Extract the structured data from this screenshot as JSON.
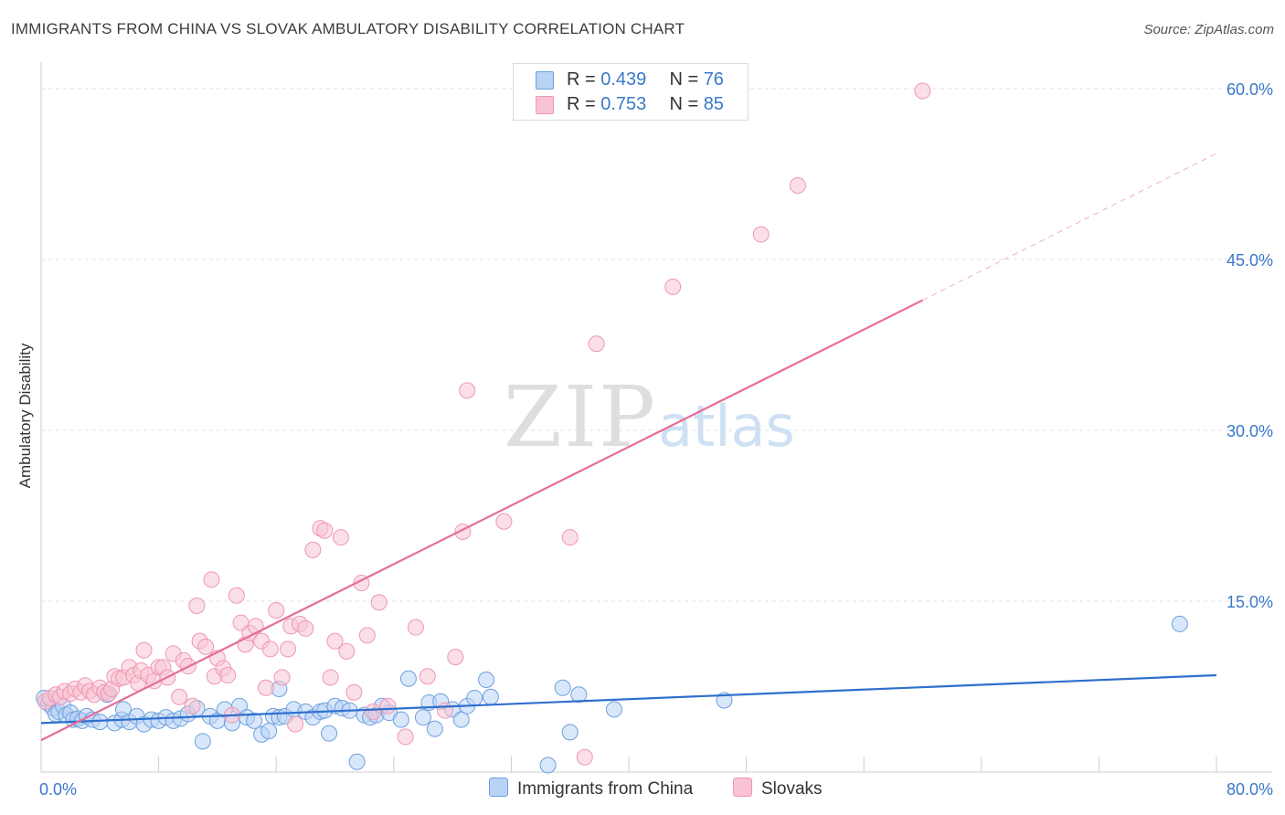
{
  "title": "IMMIGRANTS FROM CHINA VS SLOVAK AMBULATORY DISABILITY CORRELATION CHART",
  "source": "Source: ZipAtlas.com",
  "watermark": {
    "zip": "ZIP",
    "atlas": "atlas"
  },
  "legend_top": {
    "rows": [
      {
        "r_label": "R =",
        "r_value": "0.439",
        "n_label": "N =",
        "n_value": "76"
      },
      {
        "r_label": "R =",
        "r_value": "0.753",
        "n_label": "N =",
        "n_value": "85"
      }
    ]
  },
  "colors": {
    "china_fill": "#b9d3f5",
    "china_stroke": "#6fa0dd",
    "china_line": "#2f6fcc",
    "slovak_fill": "#f8c4d4",
    "slovak_stroke": "#ef97b2",
    "slovak_line": "#e56e97",
    "grid": "#e1e1e1",
    "axis_text": "#3a78c9"
  },
  "chart_data": {
    "type": "scatter",
    "title": "IMMIGRANTS FROM CHINA VS SLOVAK AMBULATORY DISABILITY CORRELATION CHART",
    "xlabel": "",
    "ylabel": "Ambulatory Disability",
    "xlim": [
      0,
      80
    ],
    "ylim": [
      0,
      62
    ],
    "x_tick_labels": [
      "0.0%",
      "80.0%"
    ],
    "y_ticks": [
      15,
      30,
      45,
      60
    ],
    "y_tick_labels": [
      "15.0%",
      "30.0%",
      "45.0%",
      "60.0%"
    ],
    "series": [
      {
        "name": "Immigrants from China",
        "r": 0.439,
        "n": 76,
        "trend": {
          "x0": 0,
          "y0": 4.3,
          "x1": 80,
          "y1": 8.5,
          "dashed_from": null
        },
        "points": [
          [
            0.2,
            6.5
          ],
          [
            0.5,
            6.0
          ],
          [
            0.8,
            5.6
          ],
          [
            1.0,
            5.1
          ],
          [
            1.2,
            5.3
          ],
          [
            1.5,
            5.8
          ],
          [
            1.7,
            5.0
          ],
          [
            2.0,
            5.2
          ],
          [
            2.2,
            4.6
          ],
          [
            2.5,
            4.7
          ],
          [
            2.8,
            4.5
          ],
          [
            3.1,
            4.9
          ],
          [
            3.5,
            4.6
          ],
          [
            4.0,
            4.4
          ],
          [
            4.5,
            6.8
          ],
          [
            5.0,
            4.3
          ],
          [
            5.5,
            4.6
          ],
          [
            5.6,
            5.5
          ],
          [
            6.0,
            4.4
          ],
          [
            6.5,
            4.9
          ],
          [
            7.0,
            4.2
          ],
          [
            7.5,
            4.6
          ],
          [
            8.0,
            4.5
          ],
          [
            8.5,
            4.8
          ],
          [
            9.0,
            4.5
          ],
          [
            9.5,
            4.7
          ],
          [
            10.0,
            5.1
          ],
          [
            10.6,
            5.6
          ],
          [
            11.0,
            2.7
          ],
          [
            11.5,
            4.9
          ],
          [
            12.0,
            4.5
          ],
          [
            12.5,
            5.5
          ],
          [
            13.0,
            4.3
          ],
          [
            13.5,
            5.8
          ],
          [
            14.0,
            4.8
          ],
          [
            14.5,
            4.5
          ],
          [
            15.0,
            3.3
          ],
          [
            15.5,
            3.6
          ],
          [
            15.8,
            4.9
          ],
          [
            16.2,
            4.8
          ],
          [
            16.2,
            7.3
          ],
          [
            16.6,
            4.9
          ],
          [
            17.2,
            5.5
          ],
          [
            18.0,
            5.3
          ],
          [
            18.5,
            4.8
          ],
          [
            19.0,
            5.3
          ],
          [
            19.3,
            5.4
          ],
          [
            19.6,
            3.4
          ],
          [
            20.0,
            5.8
          ],
          [
            20.5,
            5.6
          ],
          [
            21.0,
            5.4
          ],
          [
            21.5,
            0.9
          ],
          [
            22.0,
            5.0
          ],
          [
            22.4,
            4.8
          ],
          [
            22.8,
            5.0
          ],
          [
            23.2,
            5.8
          ],
          [
            23.7,
            5.2
          ],
          [
            24.5,
            4.6
          ],
          [
            25.0,
            8.2
          ],
          [
            26.0,
            4.8
          ],
          [
            26.4,
            6.1
          ],
          [
            26.8,
            3.8
          ],
          [
            27.2,
            6.2
          ],
          [
            28.0,
            5.5
          ],
          [
            28.6,
            4.6
          ],
          [
            29.0,
            5.8
          ],
          [
            29.5,
            6.5
          ],
          [
            30.3,
            8.1
          ],
          [
            30.6,
            6.6
          ],
          [
            34.5,
            0.6
          ],
          [
            35.5,
            7.4
          ],
          [
            36.0,
            3.5
          ],
          [
            36.6,
            6.8
          ],
          [
            39.0,
            5.5
          ],
          [
            46.5,
            6.3
          ],
          [
            77.5,
            13.0
          ]
        ]
      },
      {
        "name": "Slovaks",
        "r": 0.753,
        "n": 85,
        "trend": {
          "x0": 0,
          "y0": 2.8,
          "x1": 80,
          "y1": 54.3,
          "dashed_from": 60
        },
        "points": [
          [
            0.3,
            6.2
          ],
          [
            0.6,
            6.5
          ],
          [
            1.0,
            6.8
          ],
          [
            1.3,
            6.6
          ],
          [
            1.6,
            7.1
          ],
          [
            2.0,
            6.9
          ],
          [
            2.3,
            7.3
          ],
          [
            2.7,
            7.0
          ],
          [
            3.0,
            7.6
          ],
          [
            3.3,
            7.1
          ],
          [
            3.6,
            6.8
          ],
          [
            4.0,
            7.4
          ],
          [
            4.3,
            7.0
          ],
          [
            4.6,
            6.9
          ],
          [
            4.8,
            7.3
          ],
          [
            5.0,
            8.4
          ],
          [
            5.3,
            8.2
          ],
          [
            5.6,
            8.3
          ],
          [
            6.0,
            9.2
          ],
          [
            6.3,
            8.5
          ],
          [
            6.6,
            7.8
          ],
          [
            6.8,
            8.9
          ],
          [
            7.0,
            10.7
          ],
          [
            7.3,
            8.5
          ],
          [
            7.7,
            8.0
          ],
          [
            8.0,
            9.2
          ],
          [
            8.3,
            9.2
          ],
          [
            8.6,
            8.3
          ],
          [
            9.0,
            10.4
          ],
          [
            9.4,
            6.6
          ],
          [
            9.7,
            9.8
          ],
          [
            10.0,
            9.3
          ],
          [
            10.3,
            5.8
          ],
          [
            10.6,
            14.6
          ],
          [
            10.8,
            11.5
          ],
          [
            11.2,
            11.0
          ],
          [
            11.6,
            16.9
          ],
          [
            11.8,
            8.4
          ],
          [
            12.0,
            10.0
          ],
          [
            12.4,
            9.1
          ],
          [
            12.7,
            8.5
          ],
          [
            13.0,
            5.0
          ],
          [
            13.3,
            15.5
          ],
          [
            13.6,
            13.1
          ],
          [
            13.9,
            11.2
          ],
          [
            14.2,
            12.2
          ],
          [
            14.6,
            12.8
          ],
          [
            15.0,
            11.5
          ],
          [
            15.3,
            7.4
          ],
          [
            15.6,
            10.8
          ],
          [
            16.0,
            14.2
          ],
          [
            16.4,
            8.3
          ],
          [
            16.8,
            10.8
          ],
          [
            17.0,
            12.8
          ],
          [
            17.3,
            4.2
          ],
          [
            17.6,
            13.0
          ],
          [
            18.0,
            12.6
          ],
          [
            18.5,
            19.5
          ],
          [
            19.0,
            21.4
          ],
          [
            19.3,
            21.2
          ],
          [
            19.7,
            8.3
          ],
          [
            20.0,
            11.5
          ],
          [
            20.4,
            20.6
          ],
          [
            20.8,
            10.6
          ],
          [
            21.3,
            7.0
          ],
          [
            21.8,
            16.6
          ],
          [
            22.2,
            12.0
          ],
          [
            22.6,
            5.3
          ],
          [
            23.0,
            14.9
          ],
          [
            23.6,
            5.8
          ],
          [
            24.8,
            3.1
          ],
          [
            25.5,
            12.7
          ],
          [
            26.3,
            8.4
          ],
          [
            27.5,
            5.4
          ],
          [
            28.2,
            10.1
          ],
          [
            28.7,
            21.1
          ],
          [
            29.0,
            33.5
          ],
          [
            31.5,
            22.0
          ],
          [
            36.0,
            20.6
          ],
          [
            37.0,
            1.3
          ],
          [
            37.8,
            37.6
          ],
          [
            43.0,
            42.6
          ],
          [
            49.0,
            47.2
          ],
          [
            51.5,
            51.5
          ],
          [
            60.0,
            59.8
          ]
        ]
      }
    ]
  },
  "bottom_legend": {
    "china_label": "Immigrants from China",
    "slovak_label": "Slovaks"
  }
}
